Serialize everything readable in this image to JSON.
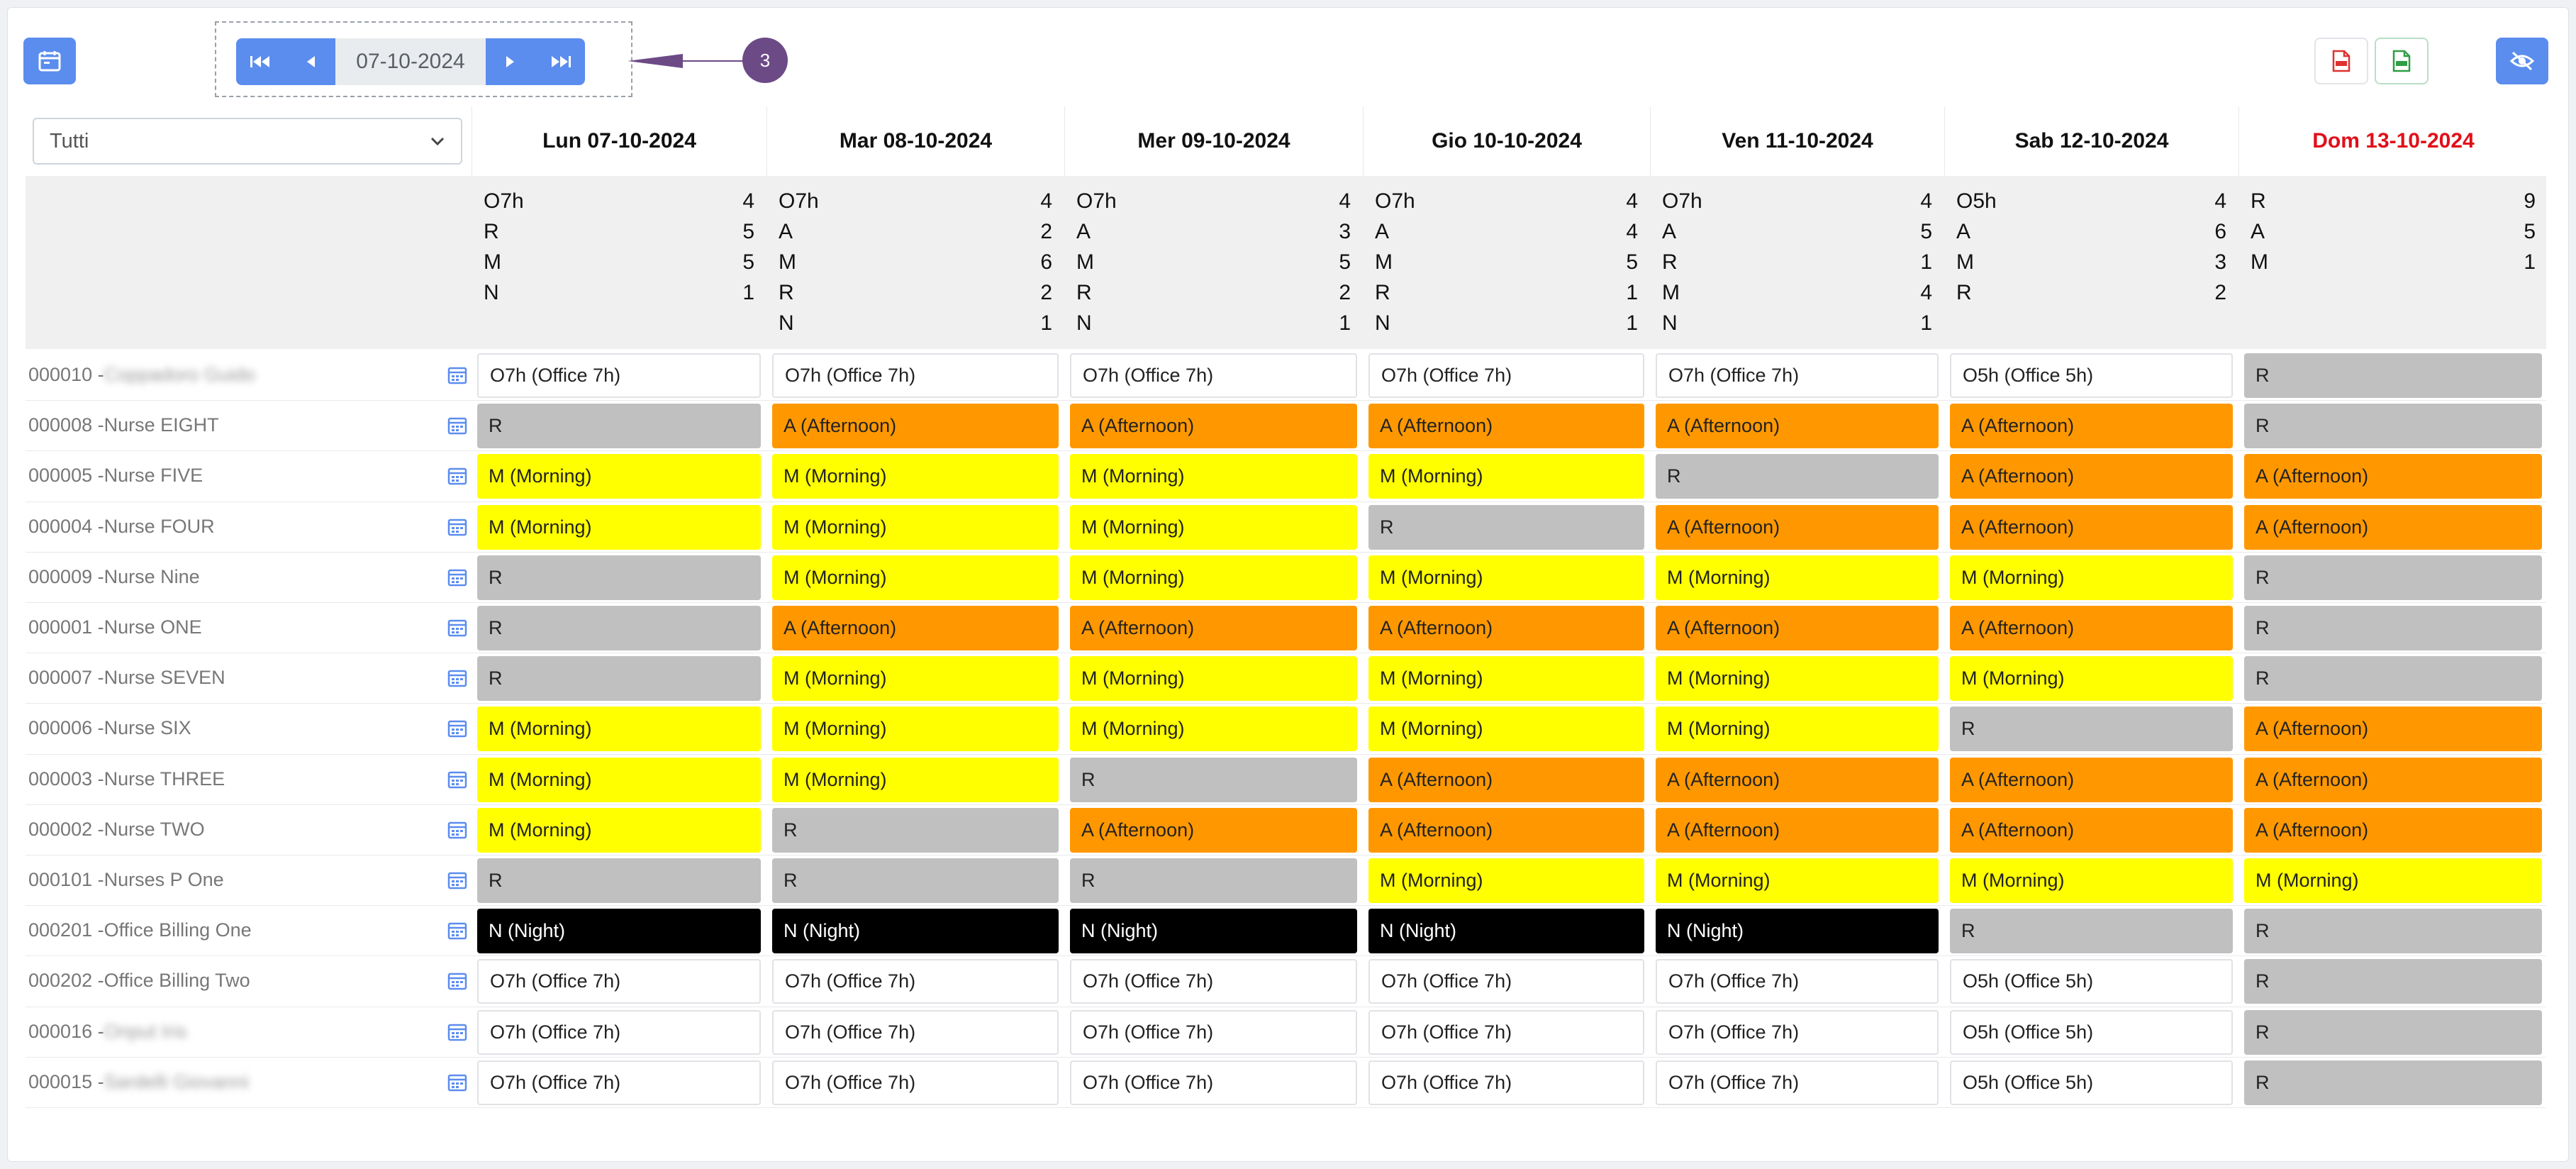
{
  "toolbar": {
    "date_value": "07-10-2024",
    "badge_count": "3",
    "filter_value": "Tutti",
    "icons": {
      "calendar": "calendar-icon",
      "first": "first-page-icon",
      "prev": "prev-icon",
      "next": "next-icon",
      "last": "last-page-icon",
      "pdf": "pdf-icon",
      "xls": "xls-icon",
      "visibility": "eye-slash-icon"
    }
  },
  "colors": {
    "accent": "#5b8def",
    "badge": "#6c4a86",
    "sunday": "#e0101a",
    "R": "#c0c0c0",
    "A": "#ff9800",
    "M": "#ffff00",
    "N": "#000000",
    "O": "#ffffff"
  },
  "days": [
    {
      "label": "Lun 07-10-2024",
      "sunday": false,
      "summary": [
        [
          "O7h",
          "4"
        ],
        [
          "R",
          "5"
        ],
        [
          "M",
          "5"
        ],
        [
          "N",
          "1"
        ]
      ]
    },
    {
      "label": "Mar 08-10-2024",
      "sunday": false,
      "summary": [
        [
          "O7h",
          "4"
        ],
        [
          "A",
          "2"
        ],
        [
          "M",
          "6"
        ],
        [
          "R",
          "2"
        ],
        [
          "N",
          "1"
        ]
      ]
    },
    {
      "label": "Mer 09-10-2024",
      "sunday": false,
      "summary": [
        [
          "O7h",
          "4"
        ],
        [
          "A",
          "3"
        ],
        [
          "M",
          "5"
        ],
        [
          "R",
          "2"
        ],
        [
          "N",
          "1"
        ]
      ]
    },
    {
      "label": "Gio 10-10-2024",
      "sunday": false,
      "summary": [
        [
          "O7h",
          "4"
        ],
        [
          "A",
          "4"
        ],
        [
          "M",
          "5"
        ],
        [
          "R",
          "1"
        ],
        [
          "N",
          "1"
        ]
      ]
    },
    {
      "label": "Ven 11-10-2024",
      "sunday": false,
      "summary": [
        [
          "O7h",
          "4"
        ],
        [
          "A",
          "5"
        ],
        [
          "R",
          "1"
        ],
        [
          "M",
          "4"
        ],
        [
          "N",
          "1"
        ]
      ]
    },
    {
      "label": "Sab 12-10-2024",
      "sunday": false,
      "summary": [
        [
          "O5h",
          "4"
        ],
        [
          "A",
          "6"
        ],
        [
          "M",
          "3"
        ],
        [
          "R",
          "2"
        ]
      ]
    },
    {
      "label": "Dom 13-10-2024",
      "sunday": true,
      "summary": [
        [
          "R",
          "9"
        ],
        [
          "A",
          "5"
        ],
        [
          "M",
          "1"
        ]
      ]
    }
  ],
  "shift_labels": {
    "O7": "O7h (Office 7h)",
    "O5": "O5h (Office 5h)",
    "R": "R",
    "A": "A (Afternoon)",
    "M": "M (Morning)",
    "N": "N (Night)"
  },
  "employees": [
    {
      "code": "000010 - ",
      "name": "Coppadoro Guido",
      "blurred": true,
      "shifts": [
        "O7",
        "O7",
        "O7",
        "O7",
        "O7",
        "O5",
        "R"
      ]
    },
    {
      "code": "000008 - ",
      "name": "Nurse EIGHT",
      "blurred": false,
      "shifts": [
        "R",
        "A",
        "A",
        "A",
        "A",
        "A",
        "R"
      ]
    },
    {
      "code": "000005 - ",
      "name": "Nurse FIVE",
      "blurred": false,
      "shifts": [
        "M",
        "M",
        "M",
        "M",
        "R",
        "A",
        "A"
      ]
    },
    {
      "code": "000004 - ",
      "name": "Nurse FOUR",
      "blurred": false,
      "shifts": [
        "M",
        "M",
        "M",
        "R",
        "A",
        "A",
        "A"
      ]
    },
    {
      "code": "000009 - ",
      "name": "Nurse Nine",
      "blurred": false,
      "shifts": [
        "R",
        "M",
        "M",
        "M",
        "M",
        "M",
        "R"
      ]
    },
    {
      "code": "000001 - ",
      "name": "Nurse ONE",
      "blurred": false,
      "shifts": [
        "R",
        "A",
        "A",
        "A",
        "A",
        "A",
        "R"
      ]
    },
    {
      "code": "000007 - ",
      "name": "Nurse SEVEN",
      "blurred": false,
      "shifts": [
        "R",
        "M",
        "M",
        "M",
        "M",
        "M",
        "R"
      ]
    },
    {
      "code": "000006 - ",
      "name": "Nurse SIX",
      "blurred": false,
      "shifts": [
        "M",
        "M",
        "M",
        "M",
        "M",
        "R",
        "A"
      ]
    },
    {
      "code": "000003 - ",
      "name": "Nurse THREE",
      "blurred": false,
      "shifts": [
        "M",
        "M",
        "R",
        "A",
        "A",
        "A",
        "A"
      ]
    },
    {
      "code": "000002 - ",
      "name": "Nurse TWO",
      "blurred": false,
      "shifts": [
        "M",
        "R",
        "A",
        "A",
        "A",
        "A",
        "A"
      ]
    },
    {
      "code": "000101 - ",
      "name": "Nurses P One",
      "blurred": false,
      "shifts": [
        "R",
        "R",
        "R",
        "M",
        "M",
        "M",
        "M"
      ]
    },
    {
      "code": "000201 - ",
      "name": "Office Billing One",
      "blurred": false,
      "shifts": [
        "N",
        "N",
        "N",
        "N",
        "N",
        "R",
        "R"
      ]
    },
    {
      "code": "000202 - ",
      "name": "Office Billing Two",
      "blurred": false,
      "shifts": [
        "O7",
        "O7",
        "O7",
        "O7",
        "O7",
        "O5",
        "R"
      ]
    },
    {
      "code": "000016 - ",
      "name": "Onput Iris",
      "blurred": true,
      "shifts": [
        "O7",
        "O7",
        "O7",
        "O7",
        "O7",
        "O5",
        "R"
      ]
    },
    {
      "code": "000015 - ",
      "name": "Sardelli Giovanni",
      "blurred": true,
      "shifts": [
        "O7",
        "O7",
        "O7",
        "O7",
        "O7",
        "O5",
        "R"
      ]
    }
  ]
}
